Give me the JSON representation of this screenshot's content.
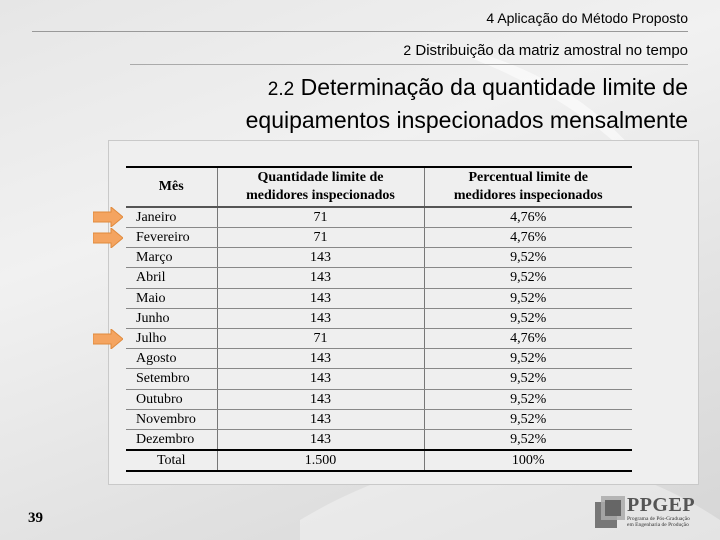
{
  "header": {
    "section_num": "4",
    "section_title": "Aplicação do Método Proposto",
    "subsection_num": "2",
    "subsection_title": "Distribuição da matriz amostral no tempo",
    "topic_num": "2.2",
    "topic_title_line1": "Determinação da quantidade limite de",
    "topic_title_line2": "equipamentos inspecionados mensalmente"
  },
  "table": {
    "headers": {
      "month": "Mês",
      "qty_line1": "Quantidade limite de",
      "qty_line2": "medidores inspecionados",
      "pct_line1": "Percentual limite de",
      "pct_line2": "medidores inspecionados"
    },
    "rows": [
      {
        "month": "Janeiro",
        "qty": "71",
        "pct": "4,76%"
      },
      {
        "month": "Fevereiro",
        "qty": "71",
        "pct": "4,76%"
      },
      {
        "month": "Março",
        "qty": "143",
        "pct": "9,52%"
      },
      {
        "month": "Abril",
        "qty": "143",
        "pct": "9,52%"
      },
      {
        "month": "Maio",
        "qty": "143",
        "pct": "9,52%"
      },
      {
        "month": "Junho",
        "qty": "143",
        "pct": "9,52%"
      },
      {
        "month": "Julho",
        "qty": "71",
        "pct": "4,76%"
      },
      {
        "month": "Agosto",
        "qty": "143",
        "pct": "9,52%"
      },
      {
        "month": "Setembro",
        "qty": "143",
        "pct": "9,52%"
      },
      {
        "month": "Outubro",
        "qty": "143",
        "pct": "9,52%"
      },
      {
        "month": "Novembro",
        "qty": "143",
        "pct": "9,52%"
      },
      {
        "month": "Dezembro",
        "qty": "143",
        "pct": "9,52%"
      }
    ],
    "total": {
      "month": "Total",
      "qty": "1.500",
      "pct": "100%"
    },
    "highlighted_months": [
      "Janeiro",
      "Fevereiro",
      "Julho"
    ]
  },
  "footer": {
    "page_number": "39",
    "logo_name": "PPGEP",
    "logo_sub_line1": "Programa de Pós-Graduação",
    "logo_sub_line2": "em Engenharia de Produção"
  },
  "colors": {
    "arrow": "#f4a460",
    "arrow_edge": "#e08a3c"
  }
}
